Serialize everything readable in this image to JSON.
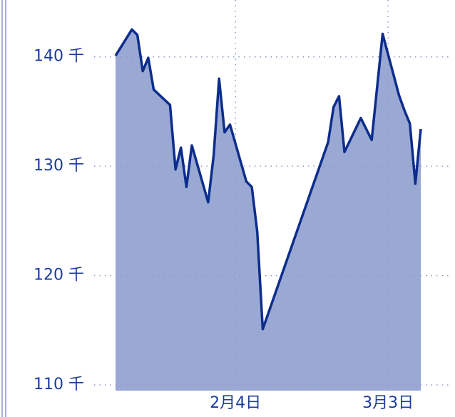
{
  "chart_data": {
    "type": "area",
    "x": [
      "1月13日",
      "1月16日",
      "1月17日",
      "1月18日",
      "1月19日",
      "1月20日",
      "1月23日",
      "1月24日",
      "1月25日",
      "1月26日",
      "1月27日",
      "1月30日",
      "1月31日",
      "2月1日",
      "2月2日",
      "2月3日",
      "2月6日",
      "2月7日",
      "2月8日",
      "2月9日",
      "2月21日",
      "2月22日",
      "2月23日",
      "2月24日",
      "2月27日",
      "2月29日",
      "3月2日",
      "3月5日",
      "3月6日",
      "3月7日",
      "3月8日",
      "3月9日"
    ],
    "values": [
      140100,
      142500,
      142000,
      138700,
      139900,
      137000,
      135600,
      129700,
      131700,
      128100,
      131900,
      126700,
      131000,
      138000,
      133100,
      133800,
      128600,
      128100,
      124000,
      115100,
      132200,
      135400,
      136400,
      131300,
      134400,
      132400,
      142100,
      136500,
      135100,
      133900,
      128400,
      133400
    ],
    "xticks": [
      "2月4日",
      "3月3日"
    ],
    "ylim": [
      110000,
      145000
    ],
    "yticks": [
      {
        "value": 110000,
        "label": "110 千"
      },
      {
        "value": 120000,
        "label": "120 千"
      },
      {
        "value": 130000,
        "label": "130 千"
      },
      {
        "value": 140000,
        "label": "140 千"
      }
    ],
    "color": "#0d2d8c",
    "fill": "#9aa9d3",
    "grid": true
  }
}
